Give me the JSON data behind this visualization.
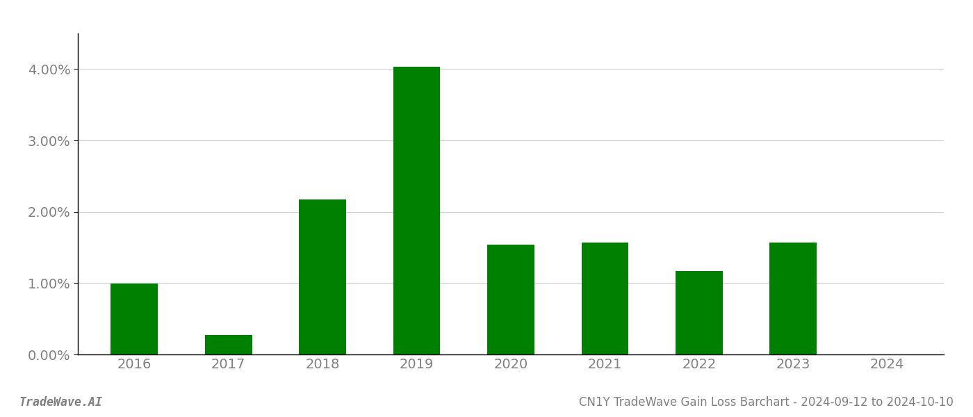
{
  "years": [
    "2016",
    "2017",
    "2018",
    "2019",
    "2020",
    "2021",
    "2022",
    "2023",
    "2024"
  ],
  "values": [
    0.0099,
    0.0027,
    0.0217,
    0.0403,
    0.0154,
    0.0157,
    0.0117,
    0.0157,
    0.0
  ],
  "bar_color": "#008000",
  "background_color": "#ffffff",
  "grid_color": "#cccccc",
  "tick_color": "#808080",
  "spine_color": "#000000",
  "ylim": [
    0,
    0.045
  ],
  "yticks": [
    0.0,
    0.01,
    0.02,
    0.03,
    0.04
  ],
  "ytick_labels": [
    "0.00%",
    "1.00%",
    "2.00%",
    "3.00%",
    "4.00%"
  ],
  "footer_left": "TradeWave.AI",
  "footer_right": "CN1Y TradeWave Gain Loss Barchart - 2024-09-12 to 2024-10-10",
  "footer_color": "#808080",
  "footer_fontsize": 12,
  "tick_fontsize": 14,
  "bar_width": 0.5
}
